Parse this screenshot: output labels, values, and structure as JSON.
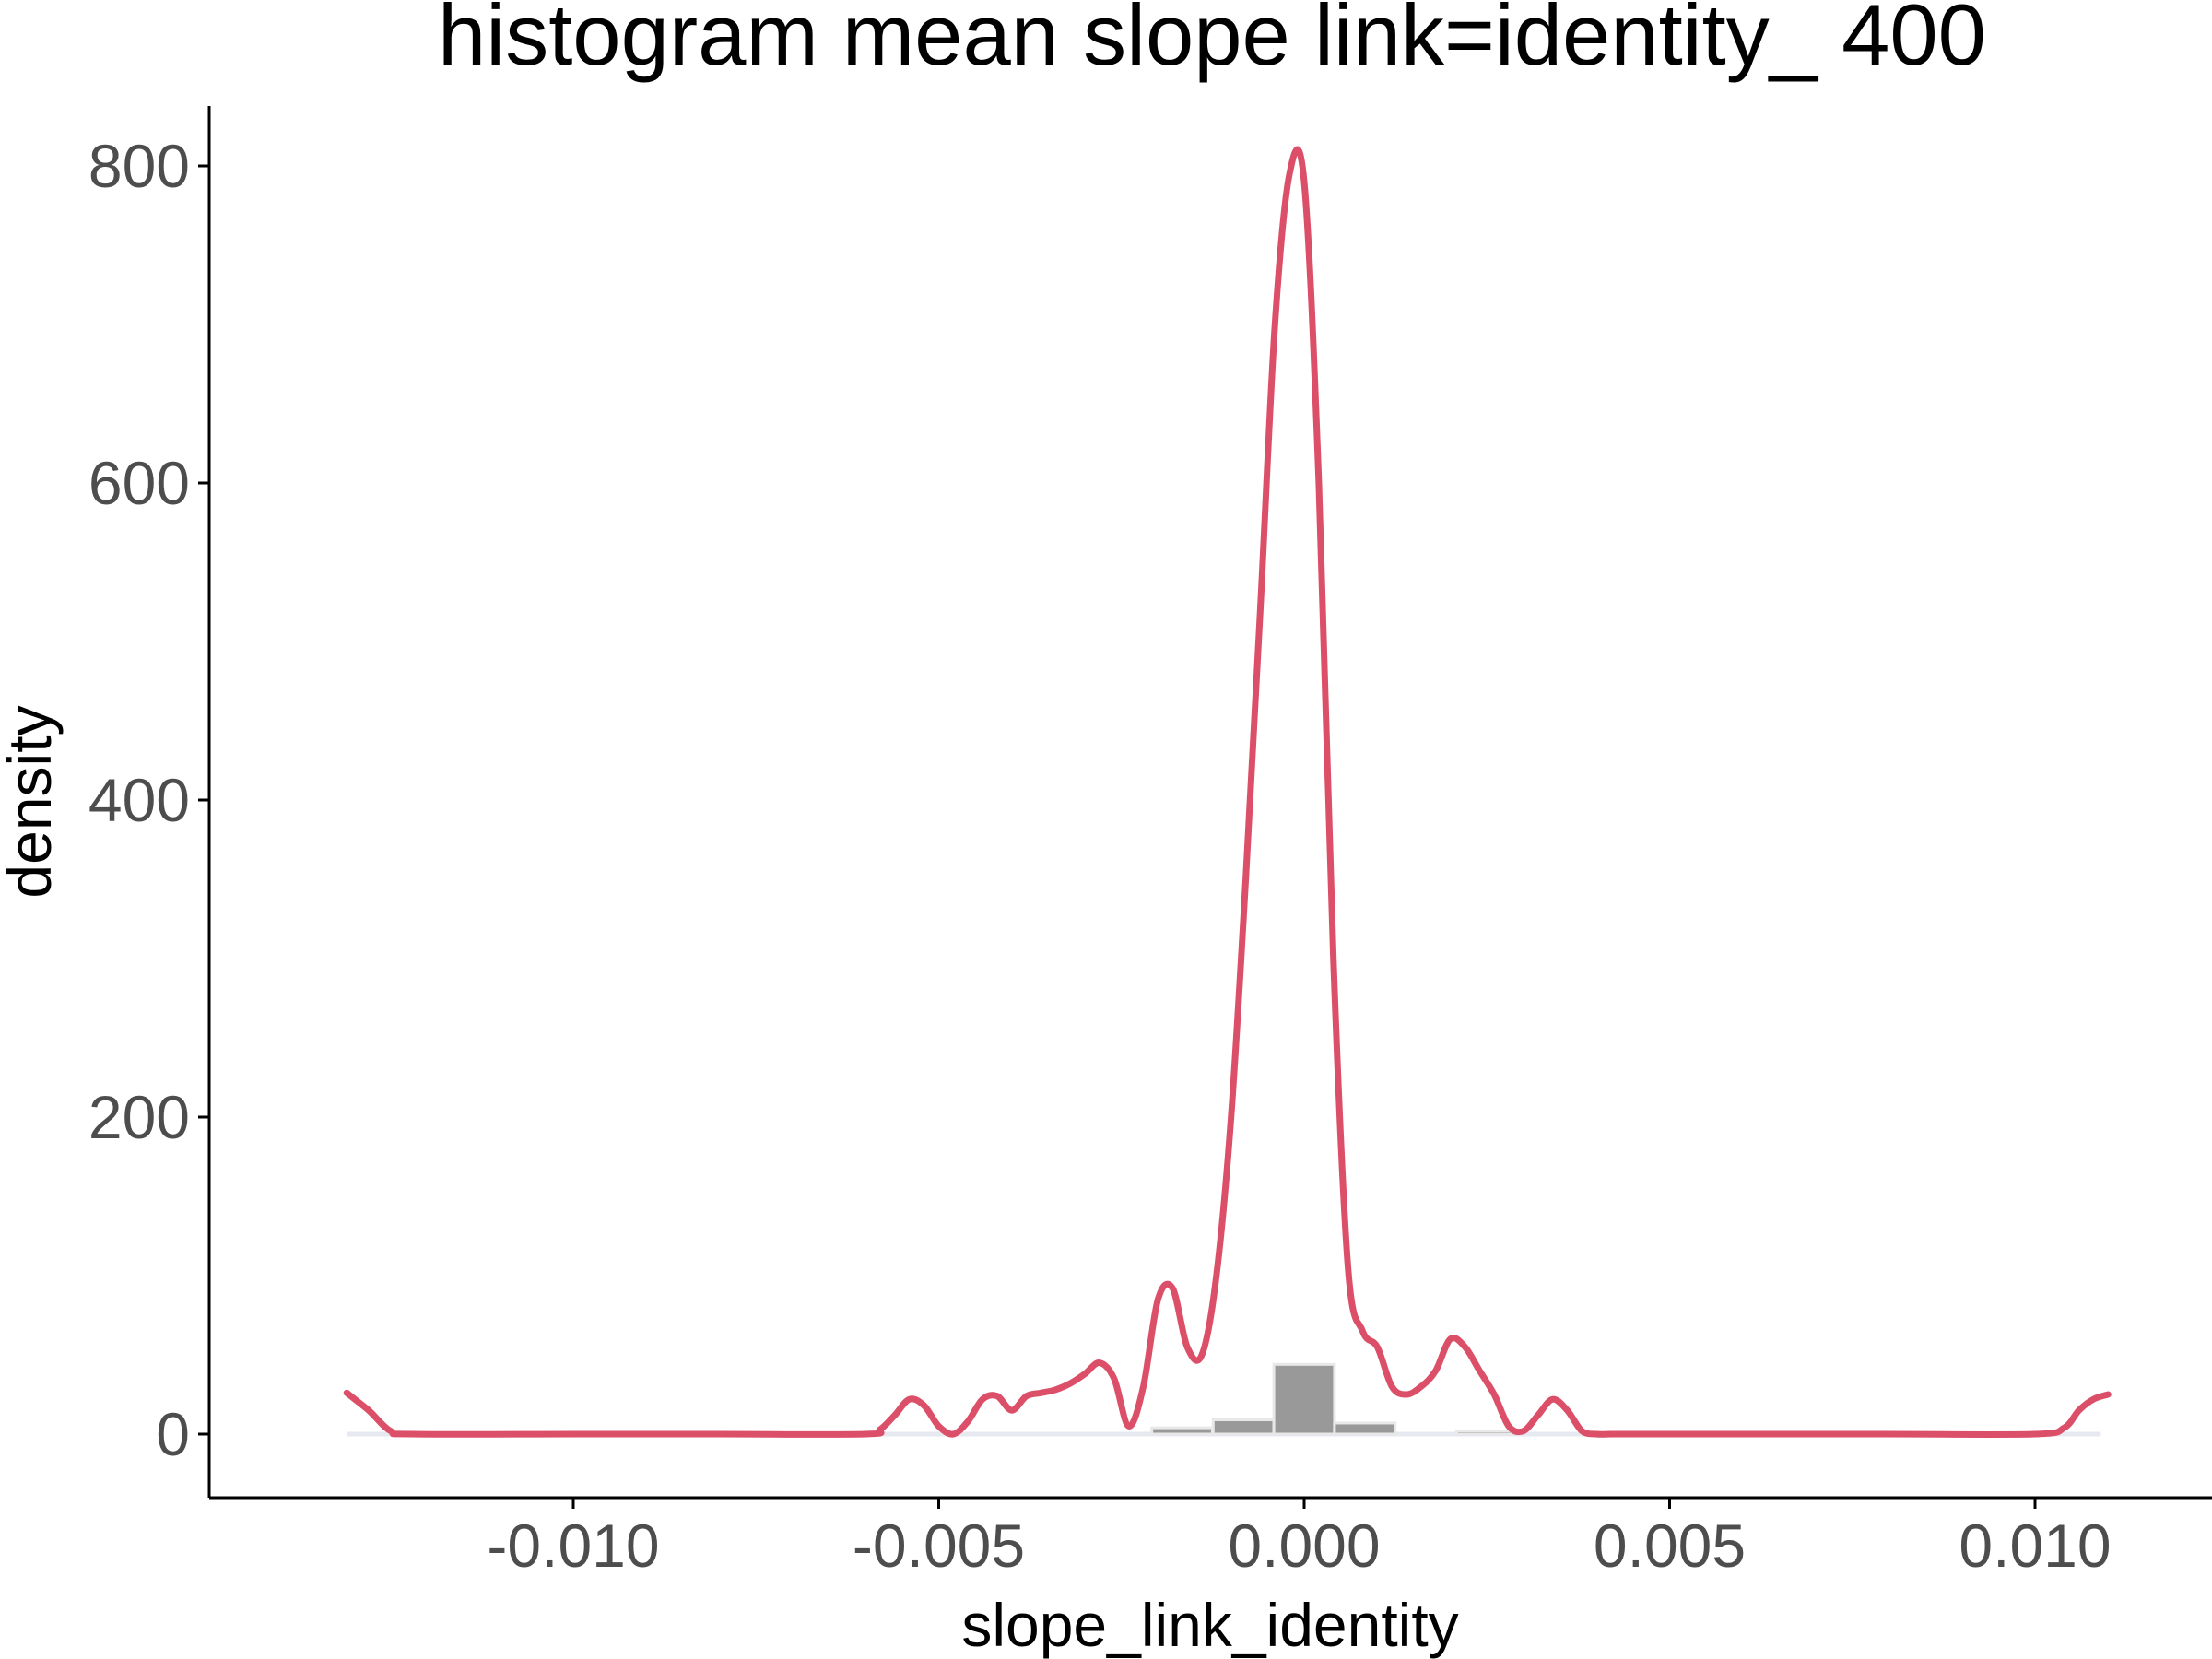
{
  "chart_data": {
    "type": "histogram",
    "title": "histogram mean slope link=identity_ 400",
    "xlabel": "slope_link_identity",
    "ylabel": "density",
    "xlim": [
      -0.0139,
      0.011
    ],
    "ylim": [
      -80,
      840
    ],
    "x_ticks": [
      -0.01,
      -0.005,
      0.0,
      0.005,
      0.01
    ],
    "x_tick_labels": [
      "-0.010",
      "-0.005",
      "0.000",
      "0.005",
      "0.010"
    ],
    "y_ticks": [
      0,
      200,
      400,
      600,
      800
    ],
    "y_tick_labels": [
      "0",
      "200",
      "400",
      "600",
      "800"
    ],
    "grid": false,
    "histogram": {
      "bin_width": 0.00083,
      "bars": [
        {
          "x": -0.00167,
          "height": 4
        },
        {
          "x": -0.00083,
          "height": 9
        },
        {
          "x": 0.0,
          "height": 44
        },
        {
          "x": 0.00083,
          "height": 7
        },
        {
          "x": 0.0025,
          "height": 2
        }
      ],
      "fill_color": "#999999",
      "edge_color": "#e8e8e8"
    },
    "density_curve": {
      "color": "#dc4f69",
      "x": [
        -0.0131,
        -0.0128,
        -0.0125,
        -0.0122,
        -0.01,
        -0.008,
        -0.006,
        -0.0058,
        -0.0056,
        -0.0054,
        -0.0052,
        -0.005,
        -0.0048,
        -0.0046,
        -0.0044,
        -0.0042,
        -0.004,
        -0.0038,
        -0.0036,
        -0.0034,
        -0.0032,
        -0.003,
        -0.0028,
        -0.0026,
        -0.0024,
        -0.0022,
        -0.002,
        -0.0018,
        -0.0016,
        -0.0014,
        -0.0012,
        -0.001,
        -0.0008,
        -0.0006,
        -0.0004,
        -0.0002,
        0.0,
        0.0002,
        0.0004,
        0.0006,
        0.0008,
        0.001,
        0.0012,
        0.0014,
        0.0016,
        0.0018,
        0.002,
        0.0022,
        0.0024,
        0.0026,
        0.0028,
        0.003,
        0.0032,
        0.0034,
        0.0036,
        0.0038,
        0.004,
        0.0042,
        0.0044,
        0.0046,
        0.006,
        0.008,
        0.01,
        0.0104,
        0.0106,
        0.0108,
        0.011
      ],
      "y": [
        26,
        15,
        2,
        0,
        0,
        0,
        0,
        3,
        12,
        22,
        18,
        5,
        0,
        8,
        22,
        24,
        15,
        24,
        26,
        28,
        32,
        38,
        45,
        35,
        5,
        30,
        85,
        92,
        55,
        50,
        100,
        200,
        350,
        520,
        700,
        795,
        790,
        600,
        300,
        105,
        65,
        55,
        30,
        25,
        30,
        40,
        60,
        55,
        40,
        25,
        5,
        2,
        12,
        22,
        15,
        2,
        0,
        0,
        0,
        0,
        0,
        0,
        0,
        4,
        15,
        22,
        25
      ]
    }
  }
}
